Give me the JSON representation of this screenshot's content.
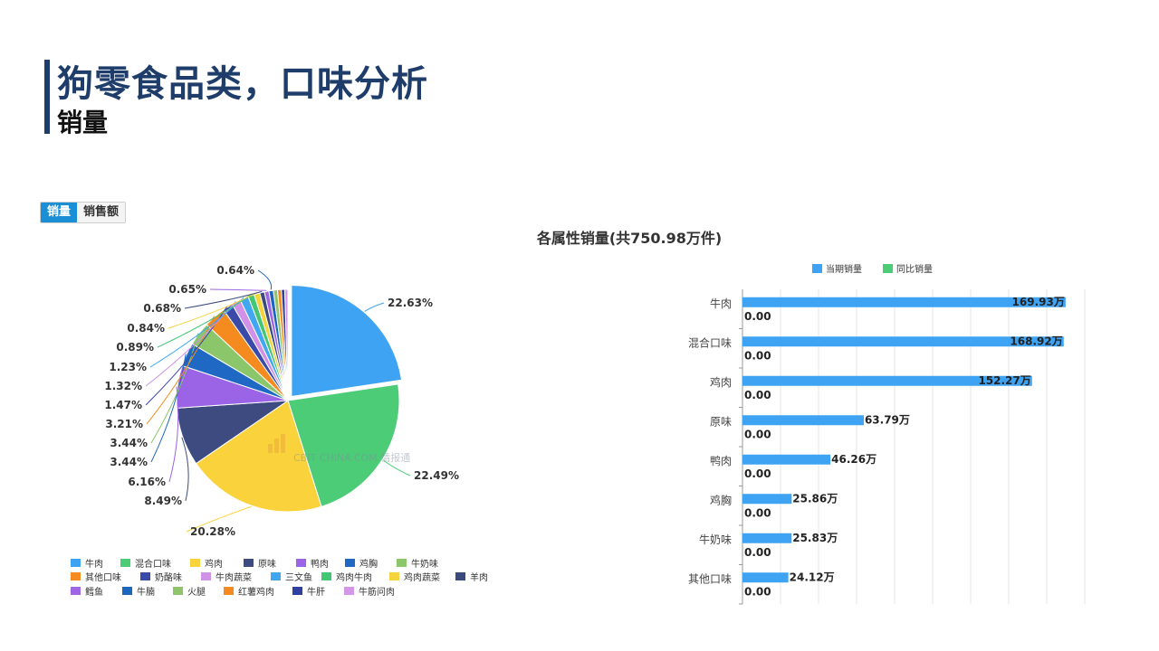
{
  "header": {
    "title": "狗零食品类，口味分析",
    "subtitle": "销量"
  },
  "toggle": {
    "options": [
      "销量",
      "销售额"
    ],
    "active": 0
  },
  "colors": {
    "accent": "#1f3d6b",
    "toggle_active": "#1b8fd6",
    "bar_current": "#3fa3f4",
    "bar_yoy": "#4dcc78"
  },
  "watermark": "CBIT CHINA.COM 情报通",
  "chart_data": [
    {
      "type": "pie",
      "title": "各属性销量(共750.98万件)",
      "slices": [
        {
          "label": "牛肉",
          "value": 22.63,
          "color": "#3fa3f4"
        },
        {
          "label": "混合口味",
          "value": 22.49,
          "color": "#4dcc78"
        },
        {
          "label": "鸡肉",
          "value": 20.28,
          "color": "#fad23c"
        },
        {
          "label": "原味",
          "value": 8.49,
          "color": "#3d4b80"
        },
        {
          "label": "鸭肉",
          "value": 6.16,
          "color": "#9b63e6"
        },
        {
          "label": "鸡胸",
          "value": 3.44,
          "color": "#1f68c3"
        },
        {
          "label": "牛奶味",
          "value": 3.44,
          "color": "#8cc66a"
        },
        {
          "label": "其他口味",
          "value": 3.21,
          "color": "#f58a1e"
        },
        {
          "label": "奶酪味",
          "value": 1.47,
          "color": "#3a4aa8"
        },
        {
          "label": "牛肉蔬菜",
          "value": 1.32,
          "color": "#cf92e6"
        },
        {
          "label": "三文鱼",
          "value": 1.23,
          "color": "#40a7f0"
        },
        {
          "label": "鸡肉牛肉",
          "value": 0.89,
          "color": "#44c774"
        },
        {
          "label": "鸡肉蔬菜",
          "value": 0.84,
          "color": "#f5d33d"
        },
        {
          "label": "羊肉",
          "value": 0.68,
          "color": "#3b4a7e"
        },
        {
          "label": "鳕鱼",
          "value": 0.65,
          "color": "#a066e3"
        },
        {
          "label": "牛腩",
          "value": 0.64,
          "color": "#1c66bf"
        },
        {
          "label": "火腿",
          "value": 0.6,
          "color": "#8fc46c"
        },
        {
          "label": "红薯鸡肉",
          "value": 0.55,
          "color": "#f48a20"
        },
        {
          "label": "牛肝",
          "value": 0.5,
          "color": "#2f3fa0"
        },
        {
          "label": "牛筋问肉",
          "value": 0.45,
          "color": "#d497e8"
        }
      ],
      "labeled_values": [
        "22.63%",
        "22.49%",
        "20.28%",
        "8.49%",
        "6.16%",
        "3.44%",
        "3.44%",
        "3.21%",
        "1.47%",
        "1.32%",
        "1.23%",
        "0.89%",
        "0.84%",
        "0.68%",
        "0.65%",
        "0.64%"
      ]
    },
    {
      "type": "bar",
      "orientation": "horizontal",
      "legend": [
        "当期销量",
        "同比销量"
      ],
      "legend_position": "top",
      "categories": [
        "牛肉",
        "混合口味",
        "鸡肉",
        "原味",
        "鸭肉",
        "鸡胸",
        "牛奶味",
        "其他口味"
      ],
      "series": [
        {
          "name": "当期销量",
          "values": [
            169.93,
            168.92,
            152.27,
            63.79,
            46.26,
            25.86,
            25.83,
            24.12
          ],
          "labels": [
            "169.93万",
            "168.92万",
            "152.27万",
            "63.79万",
            "46.26万",
            "25.86万",
            "25.83万",
            "24.12万"
          ]
        },
        {
          "name": "同比销量",
          "values": [
            0,
            0,
            0,
            0,
            0,
            0,
            0,
            0
          ],
          "labels": [
            "0.00",
            "0.00",
            "0.00",
            "0.00",
            "0.00",
            "0.00",
            "0.00",
            "0.00"
          ]
        }
      ],
      "xlim": [
        0,
        180
      ],
      "grid": true
    }
  ]
}
